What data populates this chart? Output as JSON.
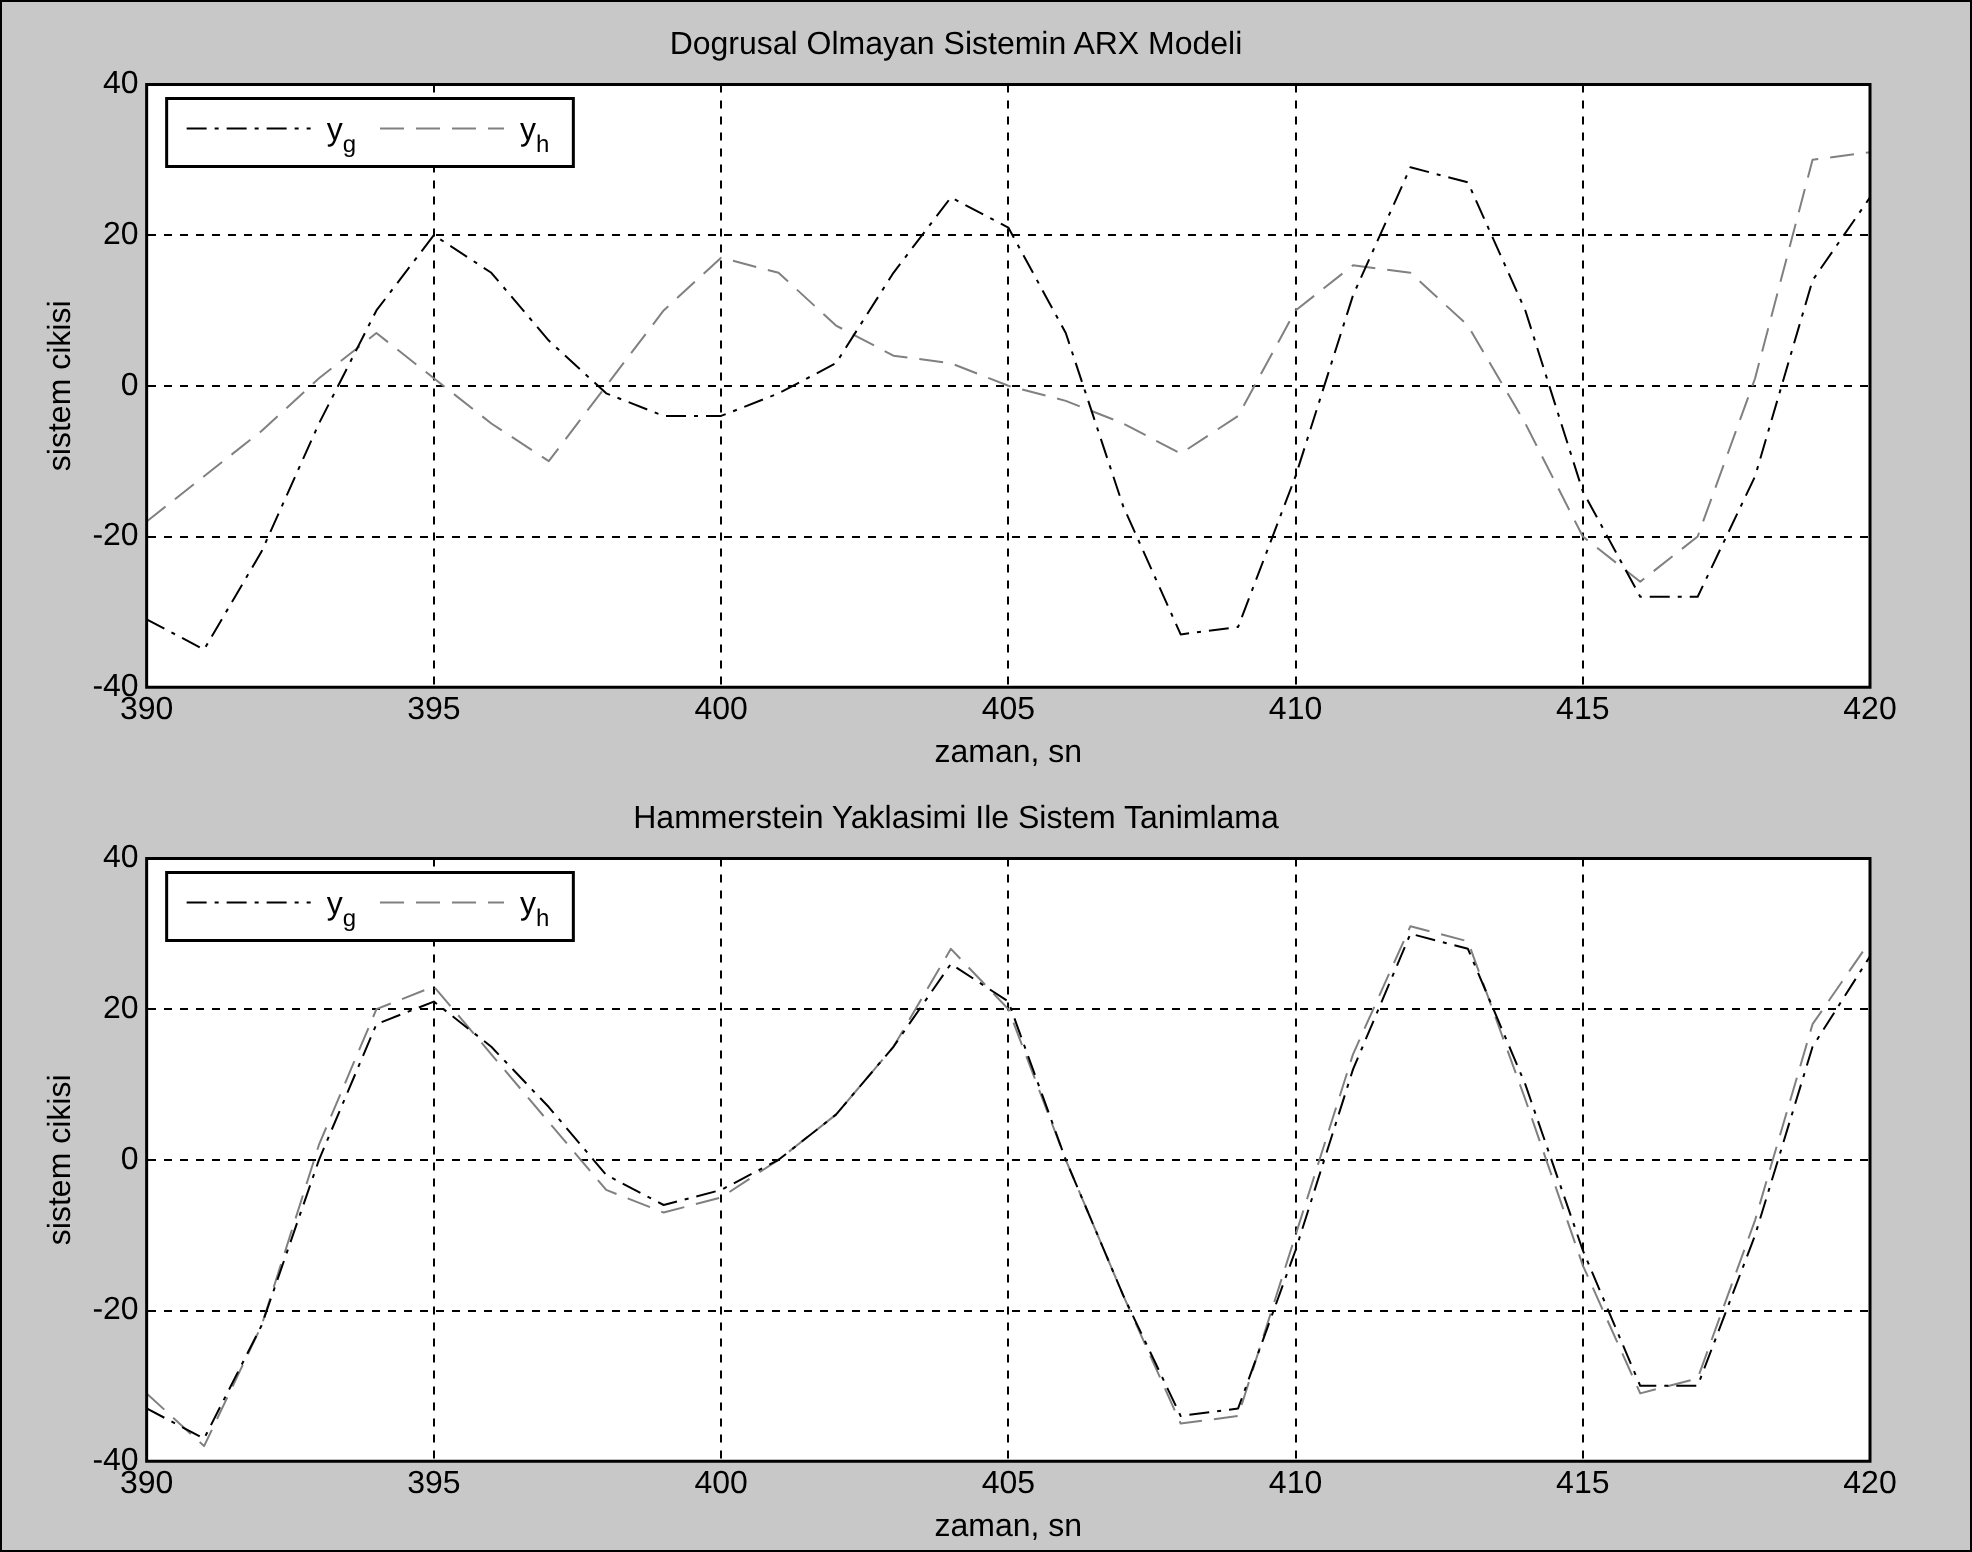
{
  "chart_data": [
    {
      "type": "line",
      "title": "Dogrusal Olmayan Sistemin ARX Modeli",
      "xlabel": "zaman, sn",
      "ylabel": "sistem cikisi",
      "x": [
        390,
        391,
        392,
        393,
        394,
        395,
        396,
        397,
        398,
        399,
        400,
        401,
        402,
        403,
        404,
        405,
        406,
        407,
        408,
        409,
        410,
        411,
        412,
        413,
        414,
        415,
        416,
        417,
        418,
        419,
        420
      ],
      "series": [
        {
          "name": "y$_{g}$",
          "color": "#000000",
          "line_style": "dashdot",
          "values": [
            -31,
            -35,
            -22,
            -5,
            10,
            20,
            15,
            6,
            -1,
            -4,
            -4,
            -1,
            3,
            15,
            25,
            21,
            7,
            -16,
            -33,
            -32,
            -12,
            12,
            29,
            27,
            10,
            -14,
            -28,
            -28,
            -12,
            14,
            25
          ]
        },
        {
          "name": "y$_{h}$",
          "color": "#808080",
          "line_style": "dashed",
          "values": [
            -18,
            -12,
            -6,
            1,
            7,
            1,
            -5,
            -10,
            0,
            10,
            17,
            15,
            8,
            4,
            3,
            0,
            -2,
            -5,
            -9,
            -4,
            10,
            16,
            15,
            8,
            -5,
            -20,
            -26,
            -20,
            1,
            30,
            31
          ]
        }
      ],
      "xlim": [
        390,
        420
      ],
      "xticks": [
        390,
        395,
        400,
        405,
        410,
        415,
        420
      ],
      "ylim": [
        -40,
        40
      ],
      "yticks": [
        -40,
        -20,
        0,
        20,
        40
      ],
      "grid": true,
      "legend": "top left",
      "marker": "none"
    },
    {
      "type": "line",
      "title": "Hammerstein Yaklasimi Ile Sistem Tanimlama",
      "xlabel": "zaman, sn",
      "ylabel": "sistem cikisi",
      "x": [
        390,
        391,
        392,
        393,
        394,
        395,
        396,
        397,
        398,
        399,
        400,
        401,
        402,
        403,
        404,
        405,
        406,
        407,
        408,
        409,
        410,
        411,
        412,
        413,
        414,
        415,
        416,
        417,
        418,
        419,
        420
      ],
      "series": [
        {
          "name": "y$_{g}$",
          "color": "#000000",
          "line_style": "dashdot",
          "values": [
            -33,
            -37,
            -22,
            0,
            18,
            21,
            15,
            7,
            -2,
            -6,
            -4,
            0,
            6,
            15,
            26,
            21,
            0,
            -18,
            -34,
            -33,
            -12,
            12,
            30,
            28,
            10,
            -12,
            -30,
            -30,
            -10,
            15,
            27
          ]
        },
        {
          "name": "y$_{h}$",
          "color": "#808080",
          "line_style": "dashed",
          "values": [
            -31,
            -38,
            -22,
            2,
            20,
            23,
            14,
            5,
            -4,
            -7,
            -5,
            0,
            6,
            15,
            28,
            20,
            0,
            -18,
            -35,
            -34,
            -10,
            14,
            31,
            29,
            8,
            -14,
            -31,
            -29,
            -8,
            18,
            29
          ]
        }
      ],
      "xlim": [
        390,
        420
      ],
      "xticks": [
        390,
        395,
        400,
        405,
        410,
        415,
        420
      ],
      "ylim": [
        -40,
        40
      ],
      "yticks": [
        -40,
        -20,
        0,
        20,
        40
      ],
      "grid": true,
      "legend": "top left",
      "marker": "none"
    }
  ]
}
